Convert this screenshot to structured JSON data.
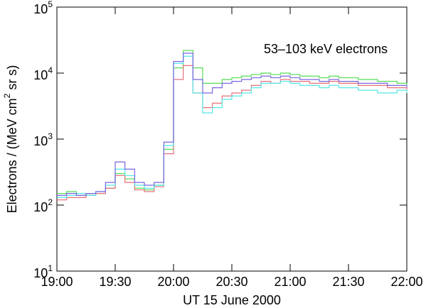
{
  "chart_data": {
    "type": "line",
    "annotation": "53–103 keV electrons",
    "x_label": "UT  15 June  2000",
    "y_label": "Electrons / (MeV cm^2 sr s)",
    "log_y": true,
    "step": true,
    "x": [
      "19:00",
      "19:05",
      "19:10",
      "19:15",
      "19:20",
      "19:25",
      "19:30",
      "19:35",
      "19:40",
      "19:45",
      "19:50",
      "19:55",
      "20:00",
      "20:05",
      "20:10",
      "20:15",
      "20:20",
      "20:25",
      "20:30",
      "20:35",
      "20:40",
      "20:45",
      "20:50",
      "20:55",
      "21:00",
      "21:05",
      "21:10",
      "21:15",
      "21:20",
      "21:25",
      "21:30",
      "21:35",
      "21:40",
      "21:45",
      "21:50",
      "21:55",
      "22:00"
    ],
    "xlim": [
      "19:00",
      "22:00"
    ],
    "xticks": [
      "19:00",
      "19:30",
      "20:00",
      "20:30",
      "21:00",
      "21:30",
      "22:00"
    ],
    "ylim": [
      10,
      100000
    ],
    "yticks": [
      {
        "value": 10,
        "label": "10^1"
      },
      {
        "value": 100,
        "label": "10^2"
      },
      {
        "value": 1000,
        "label": "10^3"
      },
      {
        "value": 10000,
        "label": "10^4"
      },
      {
        "value": 100000,
        "label": "10^5"
      }
    ],
    "series": [
      {
        "color": "#55dd55",
        "values": [
          150,
          160,
          140,
          150,
          150,
          180,
          300,
          250,
          180,
          170,
          200,
          700,
          12000,
          22000,
          12000,
          7000,
          7000,
          8000,
          8500,
          9000,
          9500,
          10000,
          9500,
          10000,
          9500,
          9000,
          9000,
          8500,
          9000,
          8500,
          8500,
          8000,
          8000,
          7500,
          7500,
          7000,
          6500
        ]
      },
      {
        "color": "#e8707a",
        "values": [
          120,
          130,
          130,
          140,
          150,
          180,
          280,
          220,
          170,
          160,
          190,
          600,
          8000,
          13000,
          5000,
          3000,
          3500,
          4500,
          5000,
          5500,
          6500,
          7500,
          7000,
          8000,
          7500,
          7500,
          7000,
          7000,
          7500,
          7000,
          7000,
          6500,
          6500,
          6500,
          6000,
          6000,
          5500
        ]
      },
      {
        "color": "#55e8e8",
        "values": [
          130,
          140,
          150,
          140,
          160,
          200,
          350,
          280,
          200,
          180,
          200,
          800,
          14000,
          18000,
          5000,
          2500,
          3000,
          4000,
          4500,
          5000,
          6000,
          7000,
          7000,
          7500,
          7000,
          6500,
          6500,
          6000,
          6500,
          6000,
          6000,
          5500,
          5500,
          5000,
          5000,
          5500,
          5000
        ]
      },
      {
        "color": "#7a66e0",
        "values": [
          140,
          150,
          140,
          150,
          160,
          220,
          450,
          350,
          220,
          200,
          220,
          900,
          15000,
          20000,
          8000,
          5000,
          6000,
          7000,
          7500,
          8000,
          8500,
          9000,
          8500,
          9000,
          8500,
          8000,
          8000,
          7500,
          8000,
          7500,
          7500,
          7000,
          7000,
          7000,
          6500,
          6500,
          6000
        ]
      }
    ]
  }
}
